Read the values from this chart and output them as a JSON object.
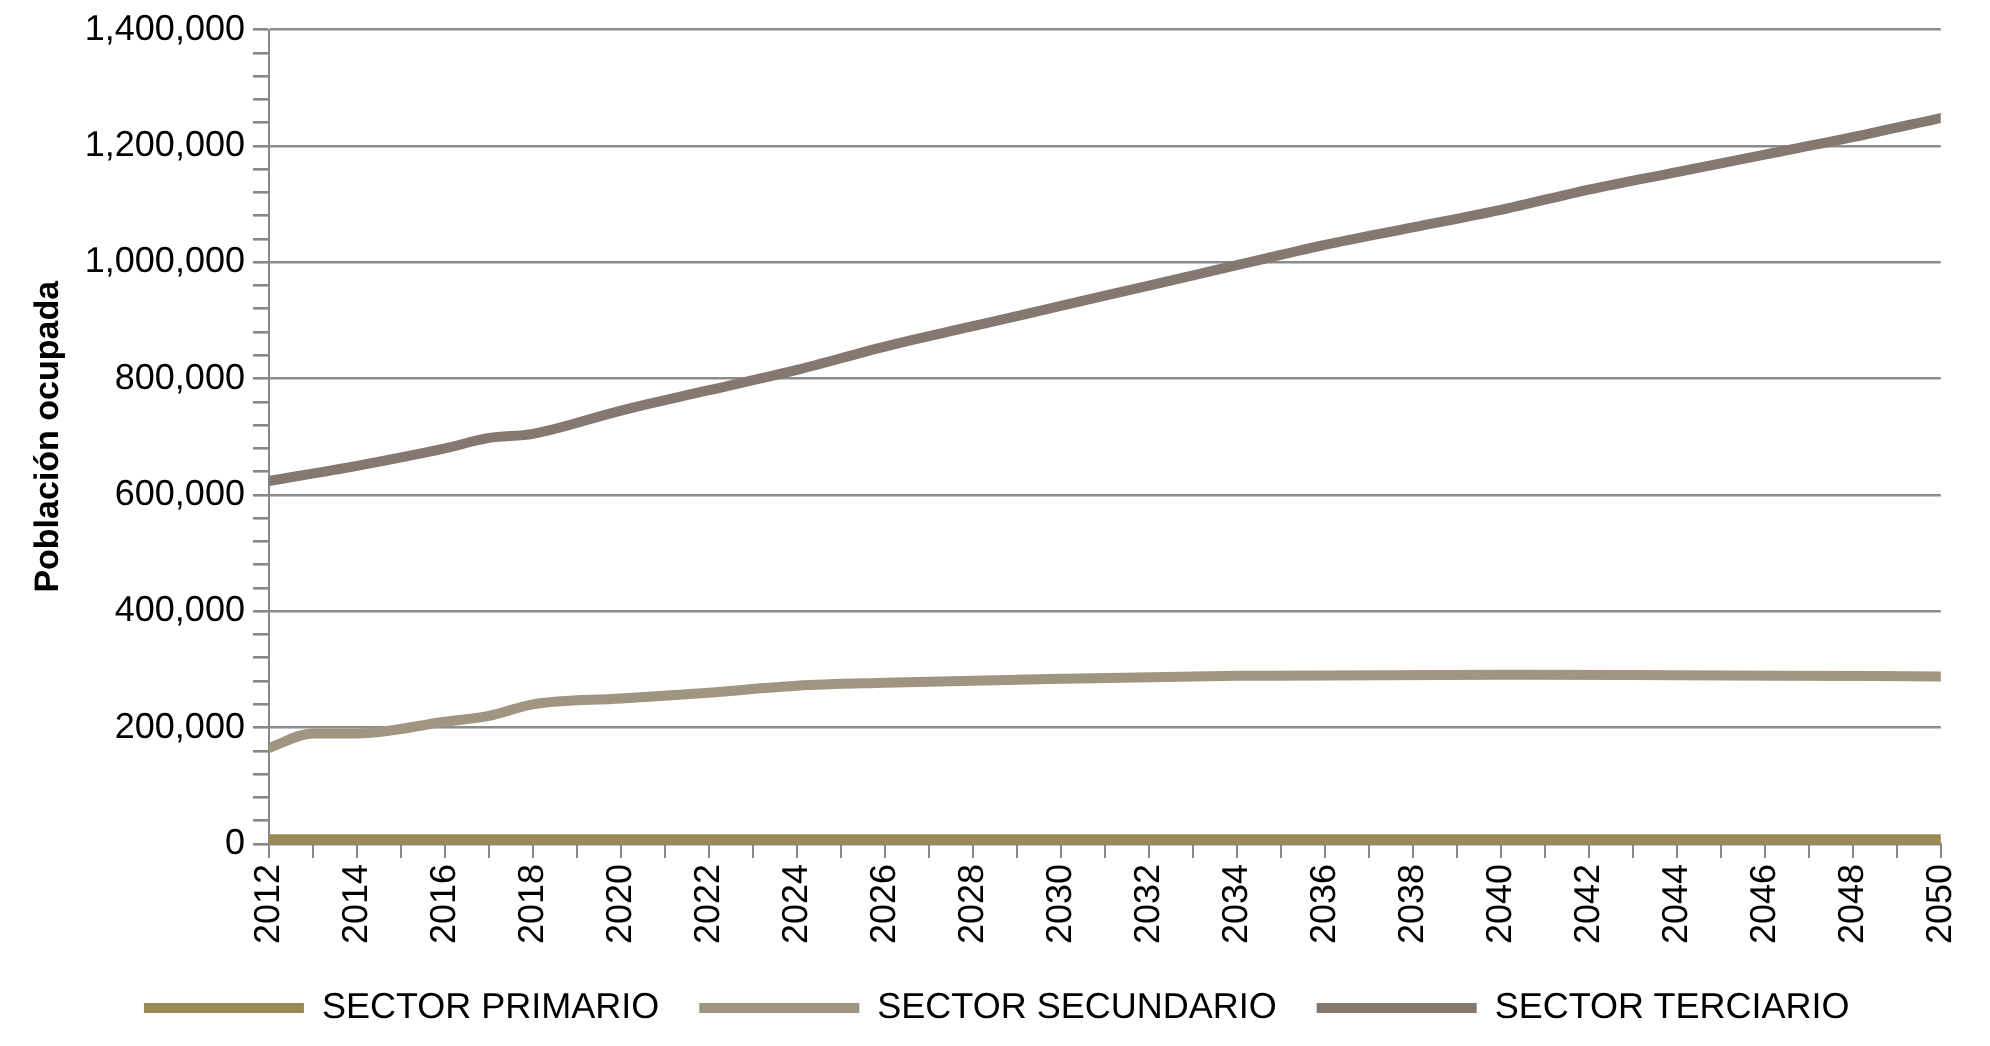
{
  "chart_data": {
    "type": "line",
    "ylabel": "Población ocupada",
    "xlim": [
      2012,
      2050
    ],
    "xticks": [
      2012,
      {
        "value": 2013,
        "label": null
      },
      2014,
      {
        "value": 2015,
        "label": null
      },
      2016,
      {
        "value": 2017,
        "label": null
      },
      2018,
      {
        "value": 2019,
        "label": null
      },
      2020,
      {
        "value": 2021,
        "label": null
      },
      2022,
      {
        "value": 2023,
        "label": null
      },
      2024,
      {
        "value": 2025,
        "label": null
      },
      2026,
      {
        "value": 2027,
        "label": null
      },
      2028,
      {
        "value": 2029,
        "label": null
      },
      2030,
      {
        "value": 2031,
        "label": null
      },
      2032,
      {
        "value": 2033,
        "label": null
      },
      2034,
      {
        "value": 2035,
        "label": null
      },
      2036,
      {
        "value": 2037,
        "label": null
      },
      2038,
      {
        "value": 2039,
        "label": null
      },
      2040,
      {
        "value": 2041,
        "label": null
      },
      2042,
      {
        "value": 2043,
        "label": null
      },
      2044,
      {
        "value": 2045,
        "label": null
      },
      2046,
      {
        "value": 2047,
        "label": null
      },
      2048,
      {
        "value": 2049,
        "label": null
      },
      2050
    ],
    "ylim": [
      0,
      1400000
    ],
    "yticks": [
      {
        "value": 0,
        "label": "0"
      },
      {
        "value": 40000,
        "label": null
      },
      {
        "value": 80000,
        "label": null
      },
      {
        "value": 120000,
        "label": null
      },
      {
        "value": 160000,
        "label": null
      },
      {
        "value": 200000,
        "label": "200,000"
      },
      {
        "value": 240000,
        "label": null
      },
      {
        "value": 280000,
        "label": null
      },
      {
        "value": 320000,
        "label": null
      },
      {
        "value": 360000,
        "label": null
      },
      {
        "value": 400000,
        "label": "400,000"
      },
      {
        "value": 440000,
        "label": null
      },
      {
        "value": 480000,
        "label": null
      },
      {
        "value": 520000,
        "label": null
      },
      {
        "value": 560000,
        "label": null
      },
      {
        "value": 600000,
        "label": "600,000"
      },
      {
        "value": 640000,
        "label": null
      },
      {
        "value": 680000,
        "label": null
      },
      {
        "value": 720000,
        "label": null
      },
      {
        "value": 760000,
        "label": null
      },
      {
        "value": 800000,
        "label": "800,000"
      },
      {
        "value": 840000,
        "label": null
      },
      {
        "value": 880000,
        "label": null
      },
      {
        "value": 920000,
        "label": null
      },
      {
        "value": 960000,
        "label": null
      },
      {
        "value": 1000000,
        "label": "1,000,000"
      },
      {
        "value": 1040000,
        "label": null
      },
      {
        "value": 1080000,
        "label": null
      },
      {
        "value": 1120000,
        "label": null
      },
      {
        "value": 1160000,
        "label": null
      },
      {
        "value": 1200000,
        "label": "1,200,000"
      },
      {
        "value": 1240000,
        "label": null
      },
      {
        "value": 1280000,
        "label": null
      },
      {
        "value": 1320000,
        "label": null
      },
      {
        "value": 1360000,
        "label": null
      },
      {
        "value": 1400000,
        "label": "1,400,000"
      }
    ],
    "grid": "y",
    "legend": "bottom",
    "marker": "none",
    "line_style": "solid",
    "series": [
      {
        "name": "SECTOR PRIMARIO",
        "color": "#9c8a54",
        "x": [
          2012,
          2020,
          2030,
          2040,
          2050
        ],
        "values": [
          8000,
          8000,
          8000,
          8000,
          8000
        ]
      },
      {
        "name": "SECTOR SECUNDARIO",
        "color": "#a09580",
        "x": [
          2012,
          2013,
          2014,
          2016,
          2017,
          2018,
          2020,
          2022,
          2024,
          2026,
          2030,
          2034,
          2040,
          2044,
          2050
        ],
        "values": [
          165000,
          190000,
          190000,
          210000,
          220000,
          240000,
          250000,
          260000,
          272000,
          277000,
          284000,
          289000,
          291000,
          290000,
          288000
        ]
      },
      {
        "name": "SECTOR TERCIARIO",
        "color": "#857870",
        "x": [
          2012,
          2014,
          2016,
          2017,
          2018,
          2020,
          2022,
          2024,
          2026,
          2028,
          2030,
          2032,
          2034,
          2036,
          2038,
          2040,
          2042,
          2044,
          2046,
          2048,
          2050
        ],
        "values": [
          624000,
          650000,
          680000,
          698000,
          705000,
          745000,
          780000,
          815000,
          855000,
          890000,
          925000,
          960000,
          995000,
          1030000,
          1060000,
          1090000,
          1125000,
          1155000,
          1185000,
          1215000,
          1248000
        ]
      }
    ]
  }
}
